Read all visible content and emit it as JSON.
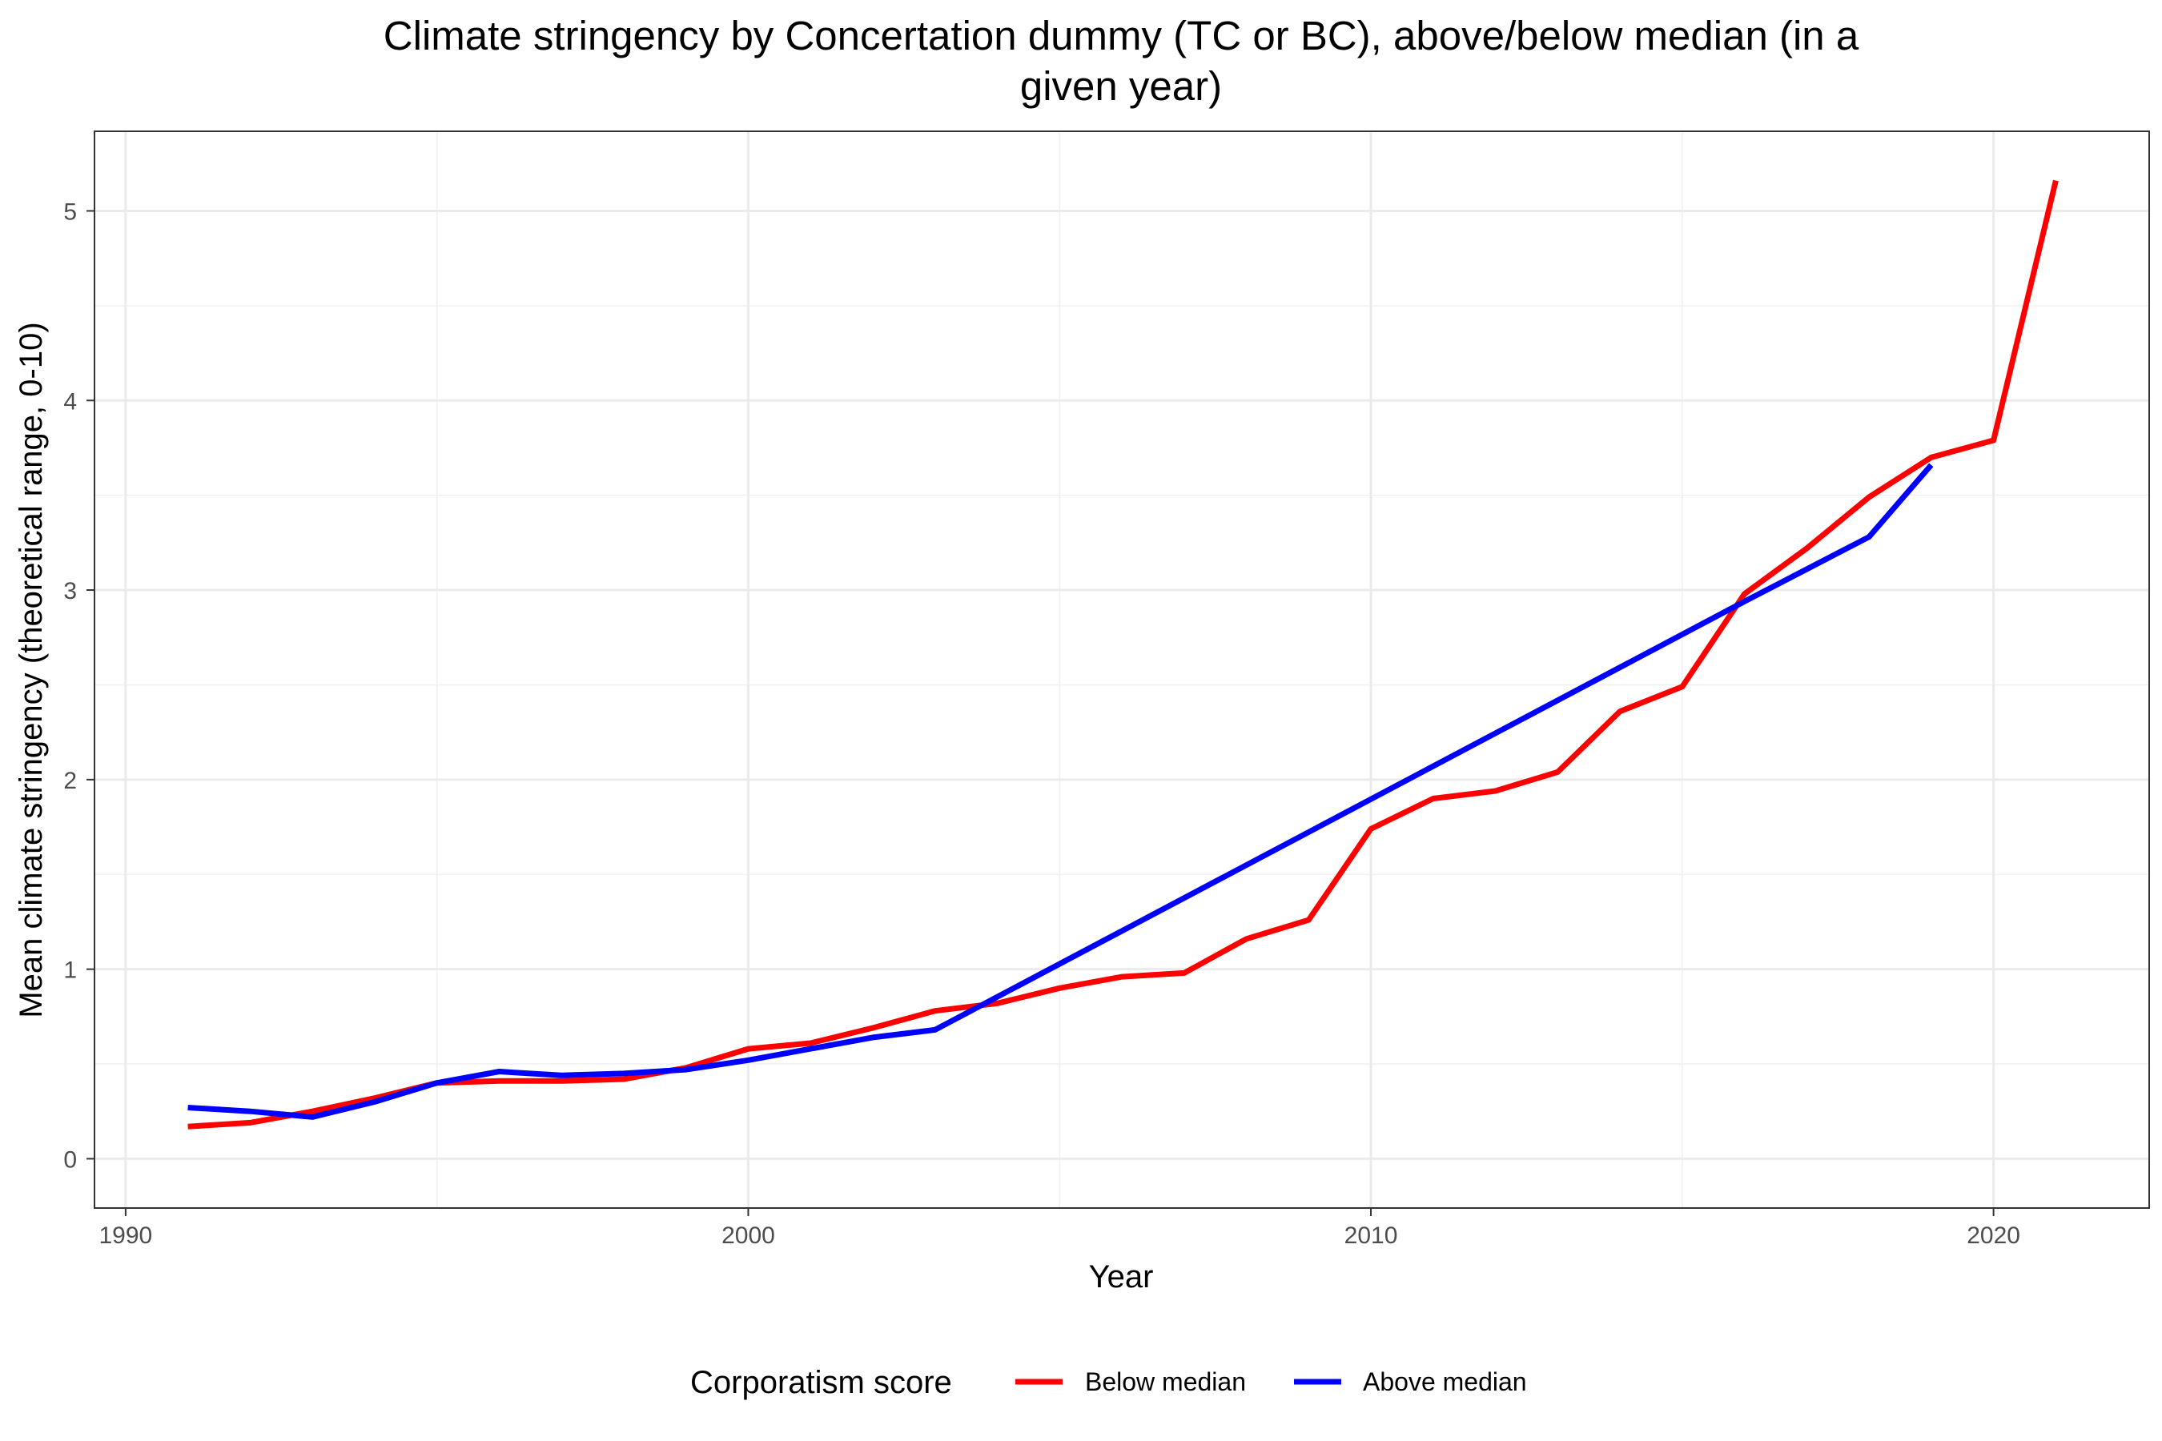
{
  "chart_data": {
    "type": "line",
    "title": "Climate stringency by Concertation dummy (TC or BC), above/below median (in a given year)",
    "title_lines": [
      "Climate stringency by Concertation dummy (TC or BC), above/below median (in a",
      "given year)"
    ],
    "xlabel": "Year",
    "ylabel": "Mean climate stringency (theoretical range, 0-10)",
    "xlim": [
      1989.5,
      2022.5
    ],
    "ylim": [
      -0.26,
      5.42
    ],
    "x_ticks": [
      1990,
      2000,
      2010,
      2020
    ],
    "y_ticks": [
      0,
      1,
      2,
      3,
      4,
      5
    ],
    "grid": true,
    "legend": {
      "title": "Corporatism score",
      "position": "bottom"
    },
    "series": [
      {
        "name": "Below median",
        "color": "#ff0000",
        "x": [
          1991,
          1992,
          1993,
          1994,
          1995,
          1996,
          1997,
          1998,
          1999,
          2000,
          2001,
          2002,
          2003,
          2004,
          2005,
          2006,
          2007,
          2008,
          2009,
          2010,
          2011,
          2012,
          2013,
          2014,
          2015,
          2016,
          2017,
          2018,
          2019,
          2020,
          2021
        ],
        "y": [
          0.17,
          0.19,
          0.25,
          0.32,
          0.4,
          0.41,
          0.41,
          0.42,
          0.48,
          0.58,
          0.61,
          0.69,
          0.78,
          0.82,
          0.9,
          0.96,
          0.98,
          1.16,
          1.26,
          1.74,
          1.9,
          1.94,
          2.04,
          2.36,
          2.49,
          2.98,
          3.22,
          3.49,
          3.7,
          3.79,
          5.16
        ]
      },
      {
        "name": "Above median",
        "color": "#0000ff",
        "x": [
          1991,
          1992,
          1993,
          1994,
          1995,
          1996,
          1997,
          1998,
          1999,
          2000,
          2001,
          2002,
          2003,
          2016,
          2017,
          2018,
          2019
        ],
        "y": [
          0.27,
          0.25,
          0.22,
          0.3,
          0.4,
          0.46,
          0.44,
          0.45,
          0.47,
          0.52,
          0.58,
          0.64,
          0.68,
          2.94,
          3.11,
          3.28,
          3.66
        ]
      }
    ]
  }
}
